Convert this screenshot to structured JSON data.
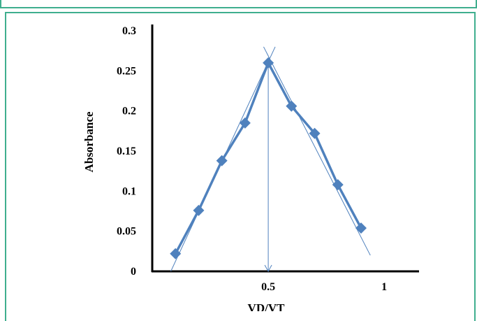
{
  "chart_data": {
    "type": "line",
    "xlabel": "VD/VT",
    "ylabel": "Absorbance",
    "xlim": [
      0,
      1.15
    ],
    "ylim": [
      0,
      0.3
    ],
    "x_ticks": [
      {
        "value": 0.5,
        "label": "0.5"
      },
      {
        "value": 1,
        "label": "1"
      }
    ],
    "y_ticks": [
      {
        "value": 0,
        "label": "0"
      },
      {
        "value": 0.05,
        "label": "0.05"
      },
      {
        "value": 0.1,
        "label": "0.1"
      },
      {
        "value": 0.15,
        "label": "0.15"
      },
      {
        "value": 0.2,
        "label": "0.2"
      },
      {
        "value": 0.25,
        "label": "0.25"
      },
      {
        "value": 0.3,
        "label": "0.3"
      }
    ],
    "grid": false,
    "legend": "none",
    "series": [
      {
        "x": [
          0.1,
          0.2,
          0.3,
          0.4,
          0.5,
          0.6,
          0.7,
          0.8,
          0.9
        ],
        "y": [
          0.022,
          0.076,
          0.138,
          0.185,
          0.26,
          0.206,
          0.172,
          0.108,
          0.054
        ],
        "color": "#4f81bd"
      }
    ],
    "extrapolation_lines": [
      {
        "x": [
          0.08,
          0.53
        ],
        "y": [
          0.0,
          0.28
        ]
      },
      {
        "x": [
          0.48,
          0.94
        ],
        "y": [
          0.28,
          0.02
        ]
      }
    ],
    "drop_line": {
      "x": 0.5,
      "y_from": 0.26,
      "y_to": 0
    },
    "colors": {
      "frame": "#3fae8e",
      "series": "#4f81bd"
    }
  }
}
